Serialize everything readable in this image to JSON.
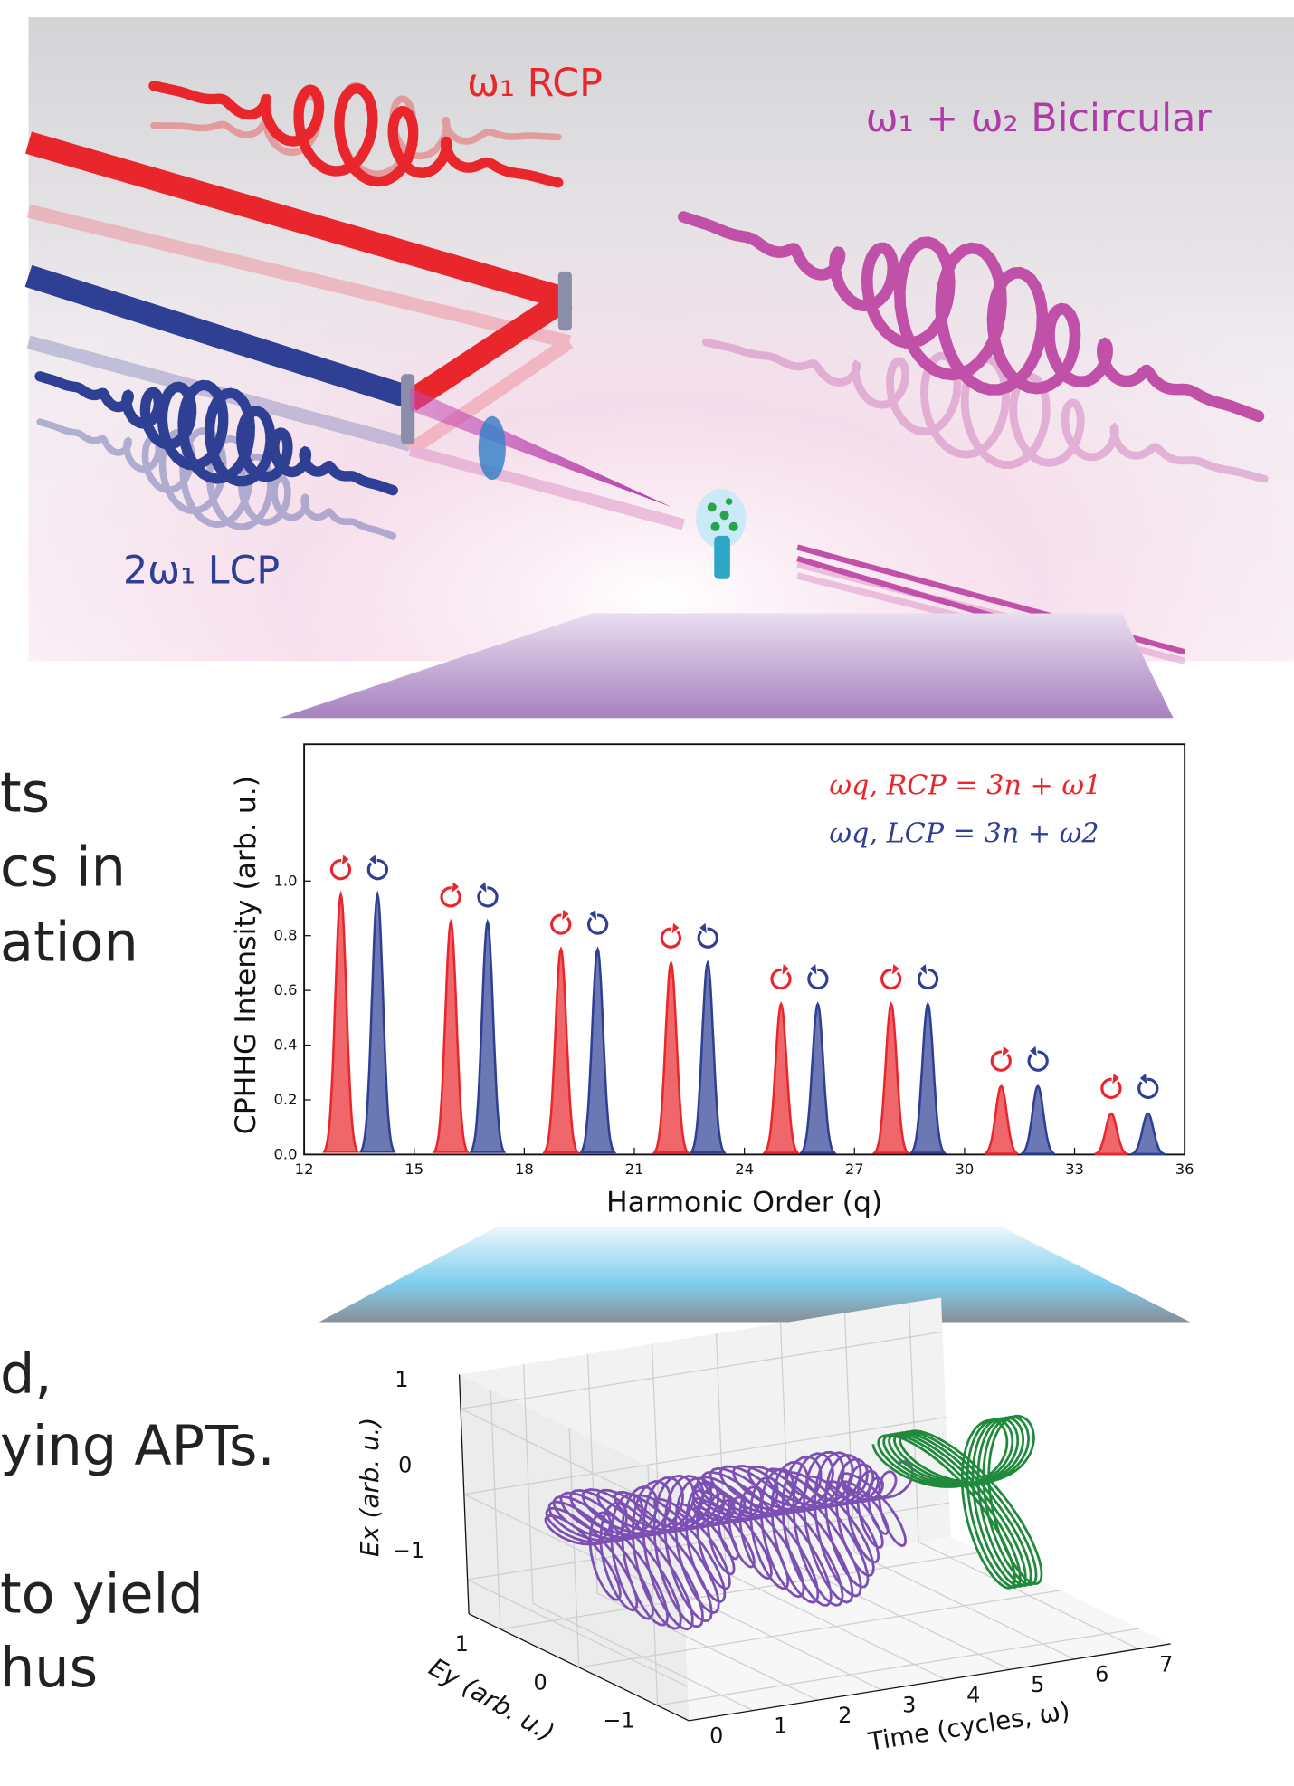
{
  "illustration": {
    "labels": [
      "ω₁ RCP",
      "ω₁ + ω₂ Bicircular",
      "2ω₁ LCP"
    ]
  },
  "side_text": [
    "ts",
    "cs in",
    "ation",
    "d,",
    "ying APTs.",
    "to yield",
    "hus"
  ],
  "chart_data": [
    {
      "type": "area",
      "xlabel": "Harmonic Order (q)",
      "ylabel": "CPHHG Intensity (arb. u.)",
      "xlim": [
        12,
        36
      ],
      "xticks": [
        12,
        15,
        18,
        21,
        24,
        27,
        30,
        33,
        36
      ],
      "ylim": [
        0,
        1.5
      ],
      "yticks": [
        {
          "value": 0,
          "label": "0.0"
        },
        0.2,
        0.4,
        0.6,
        0.8,
        {
          "value": 1,
          "label": "1.0"
        }
      ],
      "series": [
        {
          "name": "ωq, RCP = 3n + ω1",
          "color": "#e8262b",
          "x": [
            13,
            16,
            19,
            22,
            25,
            28,
            31,
            34
          ],
          "values": [
            0.95,
            0.85,
            0.75,
            0.7,
            0.55,
            0.55,
            0.25,
            0.15
          ]
        },
        {
          "name": "ωq, LCP = 3n + ω2",
          "color": "#2e3f94",
          "x": [
            14,
            17,
            20,
            23,
            26,
            29,
            32,
            35
          ],
          "values": [
            0.95,
            0.85,
            0.75,
            0.7,
            0.55,
            0.55,
            0.25,
            0.15
          ]
        }
      ]
    },
    {
      "type": "line3d",
      "xlabel": "Time (cycles, ω)",
      "ylabel": "Ey (arb. u.)",
      "zlabel": "Ex (arb. u.)",
      "xlim": [
        0,
        7.5
      ],
      "xticks": [
        0,
        1,
        2,
        3,
        4,
        5,
        6,
        7
      ],
      "ylim": [
        -1.4,
        1.4
      ],
      "yticks": [
        {
          "value": -1,
          "label": "−1"
        },
        0,
        1
      ],
      "zlim": [
        -1.4,
        1.4
      ],
      "zticks": [
        {
          "value": -1,
          "label": "−1"
        },
        0,
        1
      ]
    }
  ]
}
